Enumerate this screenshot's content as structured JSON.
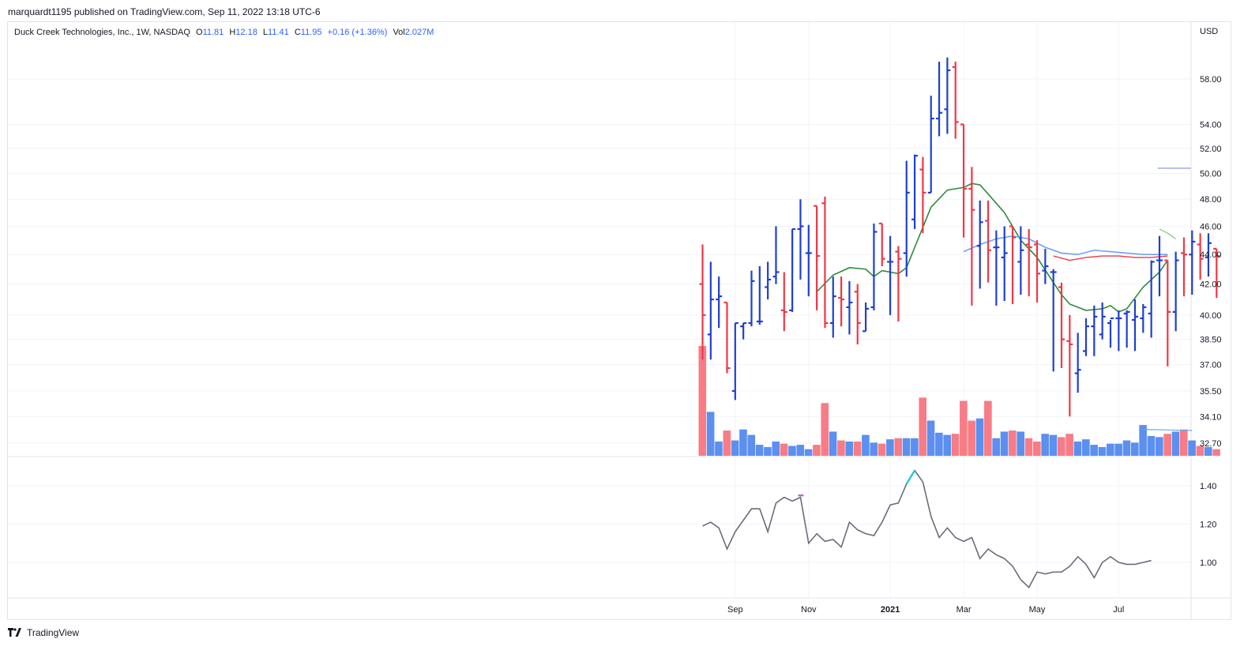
{
  "header": {
    "published_text": "marquardt1195 published on TradingView.com, Sep 11, 2022 13:18 UTC-6"
  },
  "legend": {
    "symbol": "Duck Creek Technologies, Inc., 1W, NASDAQ",
    "open_label": "O",
    "open": "11.81",
    "high_label": "H",
    "high": "12.18",
    "low_label": "L",
    "low": "11.41",
    "close_label": "C",
    "close": "11.95",
    "change": "+0.16 (+1.36%)",
    "vol_label": "Vol",
    "vol": "2.027M"
  },
  "currency": "USD",
  "footer": {
    "brand": "TradingView"
  },
  "colors": {
    "up": "#1e3fd1",
    "down": "#f23645",
    "vol_up": "#5b8ff0",
    "vol_down": "#f77c86",
    "ma_green": "#2e8b3a",
    "ma_blue": "#6ba3f5",
    "ma_red": "#f23645",
    "osc": "#6a6d78",
    "grid": "#f0f3fa"
  },
  "chart_data": [
    {
      "type": "ohlc",
      "name": "price",
      "y_scale": "log",
      "y_ticks": [
        58.0,
        54.0,
        52.0,
        50.0,
        48.0,
        46.0,
        44.0,
        42.0,
        40.0,
        38.5,
        37.0,
        35.5,
        34.1,
        32.7
      ],
      "x_ticks": [
        {
          "label": "Sep",
          "week": 4,
          "bold": false
        },
        {
          "label": "Nov",
          "week": 13,
          "bold": false
        },
        {
          "label": "2021",
          "week": 23,
          "bold": true
        },
        {
          "label": "Mar",
          "week": 32,
          "bold": false
        },
        {
          "label": "May",
          "week": 41,
          "bold": false
        },
        {
          "label": "Jul",
          "week": 51,
          "bold": false
        }
      ],
      "bars": [
        {
          "o": 42.0,
          "h": 44.7,
          "l": 37.3,
          "c": 40.0,
          "v": 1.0
        },
        {
          "o": 38.8,
          "h": 43.5,
          "l": 37.3,
          "c": 41.0,
          "v": 0.4
        },
        {
          "o": 41.0,
          "h": 42.5,
          "l": 39.2,
          "c": 41.2,
          "v": 0.13
        },
        {
          "o": 40.8,
          "h": 40.8,
          "l": 36.5,
          "c": 36.8,
          "v": 0.23
        },
        {
          "o": 35.5,
          "h": 39.5,
          "l": 35.0,
          "c": 39.5,
          "v": 0.14
        },
        {
          "o": 39.3,
          "h": 39.5,
          "l": 38.5,
          "c": 39.5,
          "v": 0.24
        },
        {
          "o": 39.5,
          "h": 42.9,
          "l": 39.3,
          "c": 42.2,
          "v": 0.19
        },
        {
          "o": 39.6,
          "h": 43.2,
          "l": 39.4,
          "c": 39.6,
          "v": 0.1
        },
        {
          "o": 41.8,
          "h": 43.5,
          "l": 41.0,
          "c": 42.3,
          "v": 0.08
        },
        {
          "o": 42.5,
          "h": 46.0,
          "l": 42.0,
          "c": 42.8,
          "v": 0.13
        },
        {
          "o": 40.3,
          "h": 42.8,
          "l": 39.0,
          "c": 40.2,
          "v": 0.11
        },
        {
          "o": 40.3,
          "h": 45.8,
          "l": 40.2,
          "c": 45.8,
          "v": 0.09
        },
        {
          "o": 45.8,
          "h": 48.0,
          "l": 42.3,
          "c": 46.0,
          "v": 0.1
        },
        {
          "o": 44.1,
          "h": 46.1,
          "l": 41.2,
          "c": 44.1,
          "v": 0.06
        },
        {
          "o": 47.5,
          "h": 47.5,
          "l": 40.3,
          "c": 43.9,
          "v": 0.1
        },
        {
          "o": 47.7,
          "h": 48.2,
          "l": 39.2,
          "c": 39.5,
          "v": 0.48
        },
        {
          "o": 39.5,
          "h": 42.5,
          "l": 38.6,
          "c": 41.2,
          "v": 0.22
        },
        {
          "o": 41.1,
          "h": 42.5,
          "l": 39.3,
          "c": 41.0,
          "v": 0.14
        },
        {
          "o": 40.5,
          "h": 42.2,
          "l": 38.8,
          "c": 40.8,
          "v": 0.13
        },
        {
          "o": 41.5,
          "h": 42.0,
          "l": 38.2,
          "c": 39.5,
          "v": 0.13
        },
        {
          "o": 39.0,
          "h": 40.8,
          "l": 39.0,
          "c": 40.4,
          "v": 0.19
        },
        {
          "o": 40.5,
          "h": 46.2,
          "l": 40.3,
          "c": 45.6,
          "v": 0.12
        },
        {
          "o": 46.2,
          "h": 46.2,
          "l": 43.2,
          "c": 43.7,
          "v": 0.11
        },
        {
          "o": 43.5,
          "h": 45.3,
          "l": 40.0,
          "c": 43.5,
          "v": 0.15
        },
        {
          "o": 44.2,
          "h": 44.6,
          "l": 39.6,
          "c": 43.7,
          "v": 0.16
        },
        {
          "o": 44.1,
          "h": 51.0,
          "l": 42.5,
          "c": 48.5,
          "v": 0.16
        },
        {
          "o": 46.5,
          "h": 51.5,
          "l": 45.8,
          "c": 51.4,
          "v": 0.16
        },
        {
          "o": 50.3,
          "h": 51.3,
          "l": 45.5,
          "c": 48.5,
          "v": 0.53
        },
        {
          "o": 48.5,
          "h": 56.5,
          "l": 48.5,
          "c": 54.5,
          "v": 0.32
        },
        {
          "o": 54.5,
          "h": 59.6,
          "l": 53.0,
          "c": 55.0,
          "v": 0.21
        },
        {
          "o": 55.3,
          "h": 60.0,
          "l": 53.2,
          "c": 58.8,
          "v": 0.19
        },
        {
          "o": 59.1,
          "h": 59.6,
          "l": 52.8,
          "c": 54.2,
          "v": 0.2
        },
        {
          "o": 54.0,
          "h": 54.0,
          "l": 45.2,
          "c": 48.8,
          "v": 0.5
        },
        {
          "o": 48.8,
          "h": 50.5,
          "l": 40.6,
          "c": 47.2,
          "v": 0.32
        },
        {
          "o": 44.6,
          "h": 47.9,
          "l": 41.7,
          "c": 46.3,
          "v": 0.34
        },
        {
          "o": 46.4,
          "h": 47.9,
          "l": 42.1,
          "c": 44.3,
          "v": 0.5
        },
        {
          "o": 44.5,
          "h": 45.7,
          "l": 40.6,
          "c": 44.5,
          "v": 0.16
        },
        {
          "o": 43.8,
          "h": 46.0,
          "l": 40.9,
          "c": 44.1,
          "v": 0.22
        },
        {
          "o": 46.0,
          "h": 46.0,
          "l": 40.7,
          "c": 45.2,
          "v": 0.23
        },
        {
          "o": 43.5,
          "h": 46.0,
          "l": 41.3,
          "c": 44.3,
          "v": 0.22
        },
        {
          "o": 44.7,
          "h": 45.8,
          "l": 41.2,
          "c": 44.5,
          "v": 0.16
        },
        {
          "o": 44.7,
          "h": 45.0,
          "l": 40.8,
          "c": 42.7,
          "v": 0.13
        },
        {
          "o": 42.9,
          "h": 44.4,
          "l": 42.0,
          "c": 43.2,
          "v": 0.2
        },
        {
          "o": 42.8,
          "h": 43.0,
          "l": 36.6,
          "c": 42.8,
          "v": 0.19
        },
        {
          "o": 41.8,
          "h": 42.1,
          "l": 36.8,
          "c": 38.5,
          "v": 0.17
        },
        {
          "o": 38.4,
          "h": 40.0,
          "l": 34.1,
          "c": 38.2,
          "v": 0.2
        },
        {
          "o": 36.5,
          "h": 38.9,
          "l": 35.4,
          "c": 36.7,
          "v": 0.13
        },
        {
          "o": 37.8,
          "h": 39.8,
          "l": 37.5,
          "c": 39.3,
          "v": 0.15
        },
        {
          "o": 39.3,
          "h": 40.6,
          "l": 37.5,
          "c": 39.9,
          "v": 0.1
        },
        {
          "o": 38.8,
          "h": 40.8,
          "l": 38.5,
          "c": 39.9,
          "v": 0.08
        },
        {
          "o": 39.5,
          "h": 39.7,
          "l": 38.0,
          "c": 39.8,
          "v": 0.11
        },
        {
          "o": 39.8,
          "h": 40.3,
          "l": 37.8,
          "c": 39.8,
          "v": 0.11
        },
        {
          "o": 40.1,
          "h": 40.3,
          "l": 38.0,
          "c": 40.2,
          "v": 0.14
        },
        {
          "o": 39.7,
          "h": 41.0,
          "l": 37.8,
          "c": 39.9,
          "v": 0.12
        },
        {
          "o": 39.8,
          "h": 40.7,
          "l": 38.9,
          "c": 40.5,
          "v": 0.28
        },
        {
          "o": 40.1,
          "h": 43.6,
          "l": 38.6,
          "c": 43.5,
          "v": 0.18
        },
        {
          "o": 43.6,
          "h": 45.3,
          "l": 41.2,
          "c": 43.6,
          "v": 0.17
        },
        {
          "o": 43.6,
          "h": 43.6,
          "l": 36.9,
          "c": 40.2,
          "v": 0.2
        },
        {
          "o": 40.2,
          "h": 44.2,
          "l": 39.0,
          "c": 43.6,
          "v": 0.22
        },
        {
          "o": 44.1,
          "h": 45.2,
          "l": 41.2,
          "c": 44.0,
          "v": 0.24
        },
        {
          "o": 44.0,
          "h": 45.7,
          "l": 41.3,
          "c": 44.9,
          "v": 0.14
        },
        {
          "o": 44.7,
          "h": 45.5,
          "l": 42.3,
          "c": 43.7,
          "v": 0.09
        },
        {
          "o": 43.8,
          "h": 45.5,
          "l": 42.5,
          "c": 44.8,
          "v": 0.08
        },
        {
          "o": 44.4,
          "h": 44.4,
          "l": 41.1,
          "c": 43.9,
          "v": 0.06
        }
      ],
      "ma_green": [
        [
          14,
          41.5
        ],
        [
          16,
          42.6
        ],
        [
          18,
          43.1
        ],
        [
          20,
          43.0
        ],
        [
          21,
          42.5
        ],
        [
          22,
          42.9
        ],
        [
          24,
          42.7
        ],
        [
          25,
          43.1
        ],
        [
          26,
          44.5
        ],
        [
          28,
          47.4
        ],
        [
          30,
          48.7
        ],
        [
          32,
          48.9
        ],
        [
          33,
          49.2
        ],
        [
          34,
          49.1
        ],
        [
          35,
          48.4
        ],
        [
          37,
          47.0
        ],
        [
          39,
          45.0
        ],
        [
          41,
          43.8
        ],
        [
          43,
          42.1
        ],
        [
          44,
          41.3
        ],
        [
          45,
          40.7
        ],
        [
          47,
          40.3
        ],
        [
          49,
          40.4
        ],
        [
          50,
          40.6
        ],
        [
          51,
          40.2
        ],
        [
          52,
          40.4
        ],
        [
          54,
          41.8
        ],
        [
          56,
          42.8
        ],
        [
          57,
          43.6
        ]
      ],
      "ma_blue": [
        [
          32,
          44.2
        ],
        [
          34,
          44.7
        ],
        [
          36,
          45.1
        ],
        [
          38,
          45.3
        ],
        [
          40,
          45.1
        ],
        [
          42,
          44.5
        ],
        [
          44,
          44.1
        ],
        [
          46,
          44.0
        ],
        [
          48,
          44.3
        ],
        [
          50,
          44.2
        ],
        [
          52,
          44.1
        ],
        [
          54,
          44.0
        ],
        [
          56,
          44.0
        ],
        [
          57,
          44.0
        ]
      ],
      "ma_red": [
        [
          43,
          43.9
        ],
        [
          45,
          43.6
        ],
        [
          47,
          43.8
        ],
        [
          49,
          43.9
        ],
        [
          51,
          43.9
        ],
        [
          53,
          43.8
        ],
        [
          55,
          43.8
        ],
        [
          57,
          43.9
        ]
      ],
      "ma_green_short": [
        [
          56,
          45.8
        ],
        [
          57,
          45.5
        ],
        [
          58,
          45.1
        ]
      ],
      "ref_line": {
        "value": 50.4,
        "label": ""
      }
    },
    {
      "type": "line",
      "name": "oscillator",
      "y_ticks": [
        1.4,
        1.2,
        1.0
      ],
      "ylim": [
        0.83,
        1.53
      ],
      "values": [
        1.19,
        1.21,
        1.18,
        1.07,
        1.16,
        1.22,
        1.28,
        1.28,
        1.16,
        1.31,
        1.34,
        1.32,
        1.34,
        1.1,
        1.15,
        1.11,
        1.12,
        1.08,
        1.21,
        1.17,
        1.15,
        1.14,
        1.21,
        1.3,
        1.31,
        1.41,
        1.48,
        1.42,
        1.24,
        1.13,
        1.18,
        1.13,
        1.11,
        1.13,
        1.02,
        1.07,
        1.04,
        1.02,
        0.98,
        0.91,
        0.87,
        0.95,
        0.94,
        0.95,
        0.95,
        0.98,
        1.03,
        0.99,
        0.92,
        1.0,
        1.03,
        1.0,
        0.99,
        0.99,
        1.0,
        1.01
      ]
    }
  ]
}
